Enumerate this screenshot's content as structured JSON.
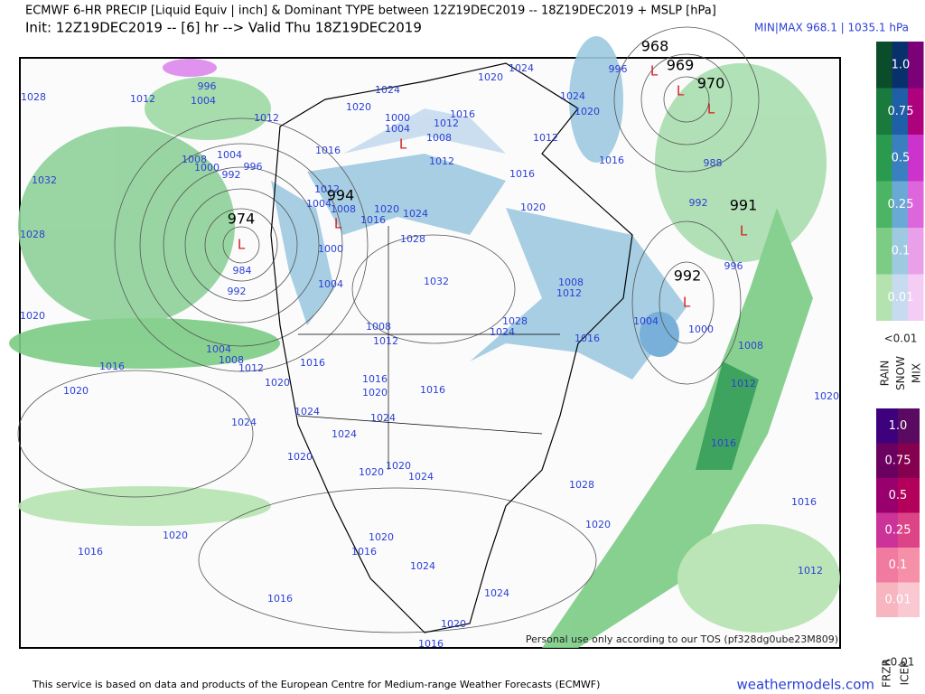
{
  "header": {
    "title": "ECMWF 6-HR PRECIP [Liquid Equiv | inch] & Dominant TYPE between 12Z19DEC2019 -- 18Z19DEC2019 + MSLP [hPa]",
    "init": "Init: 12Z19DEC2019 -- [6] hr --> Valid Thu 18Z19DEC2019",
    "minmax": "MIN|MAX 968.1 | 1035.1 hPa"
  },
  "map": {
    "lows": [
      "968",
      "969",
      "970",
      "974",
      "994",
      "991",
      "992"
    ],
    "low_marker": "L",
    "isobar_labels": [
      "1028",
      "1012",
      "996",
      "1004",
      "1032",
      "1028",
      "1020",
      "1016",
      "1020",
      "1024",
      "1004",
      "1008",
      "1012",
      "992",
      "984",
      "1008",
      "1004",
      "1000",
      "992",
      "996",
      "1012",
      "1024",
      "1020",
      "1016",
      "1024",
      "1020",
      "1024",
      "1020",
      "1016",
      "1012",
      "1016",
      "1020",
      "1016",
      "988",
      "992",
      "996",
      "1000",
      "1008",
      "1012",
      "1004",
      "1028",
      "1024",
      "1032",
      "1020",
      "1024",
      "1016",
      "1028",
      "1000",
      "1004",
      "1008",
      "1012",
      "1016",
      "1020",
      "1016",
      "1020",
      "1016",
      "1024",
      "1024",
      "1024",
      "1020",
      "1020",
      "1020",
      "1024",
      "1028",
      "1020",
      "1016",
      "1012",
      "1008",
      "1020",
      "1016",
      "1012",
      "1020",
      "1016",
      "1016",
      "1020",
      "1016",
      "1024",
      "1024",
      "1020",
      "1016",
      "996",
      "1016",
      "1004",
      "1008",
      "1012",
      "1000",
      "1004",
      "1008",
      "1012",
      "1012"
    ],
    "watermark": "Personal use only according to our TOS (pf328dg0ube23M809)"
  },
  "legend": {
    "upper": {
      "labels": [
        "1.0",
        "0.75",
        "0.5",
        "0.25",
        "0.1",
        "0.01"
      ],
      "below": "<0.01",
      "types": [
        "RAIN",
        "SNOW",
        "MIX"
      ]
    },
    "lower": {
      "labels": [
        "1.0",
        "0.75",
        "0.5",
        "0.25",
        "0.1",
        "0.01"
      ],
      "below": "<0.01",
      "types": [
        "FRZR",
        "ICEP"
      ]
    }
  },
  "footer": {
    "source": "This service is based on data and products of the European Centre for Medium-range Weather Forecasts (ECMWF)",
    "site": "weathermodels.com"
  }
}
